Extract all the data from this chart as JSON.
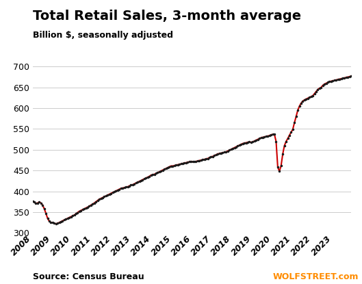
{
  "title": "Total Retail Sales, 3-month average",
  "subtitle": "Billion $, seasonally adjusted",
  "source_left": "Source: Census Bureau",
  "source_right": "WOLFSTREET.com",
  "ylim": [
    300,
    710
  ],
  "yticks": [
    300,
    350,
    400,
    450,
    500,
    550,
    600,
    650,
    700
  ],
  "background_color": "#ffffff",
  "line_color_main": "#1a1a1a",
  "line_color_highlight": "#cc0000",
  "grid_color": "#cccccc",
  "title_fontsize": 14,
  "subtitle_fontsize": 9,
  "source_fontsize": 9,
  "tick_fontsize": 9,
  "values": [
    376,
    374,
    371,
    372,
    374,
    372,
    367,
    358,
    347,
    335,
    328,
    325,
    325,
    323,
    322,
    323,
    325,
    327,
    329,
    331,
    333,
    335,
    337,
    339,
    341,
    343,
    346,
    349,
    352,
    354,
    356,
    358,
    360,
    362,
    364,
    367,
    369,
    372,
    375,
    378,
    381,
    383,
    385,
    387,
    389,
    391,
    393,
    395,
    397,
    399,
    401,
    403,
    405,
    407,
    408,
    409,
    410,
    411,
    413,
    415,
    416,
    418,
    420,
    422,
    424,
    426,
    428,
    430,
    432,
    434,
    436,
    439,
    440,
    441,
    443,
    445,
    447,
    449,
    451,
    453,
    455,
    457,
    459,
    461,
    461,
    462,
    463,
    464,
    465,
    466,
    467,
    468,
    469,
    470,
    471,
    472,
    471,
    471,
    472,
    473,
    474,
    475,
    476,
    477,
    478,
    479,
    481,
    483,
    484,
    486,
    488,
    490,
    491,
    492,
    493,
    494,
    495,
    497,
    499,
    501,
    503,
    505,
    507,
    509,
    511,
    513,
    515,
    516,
    517,
    518,
    519,
    518,
    519,
    521,
    523,
    525,
    527,
    529,
    530,
    531,
    532,
    533,
    534,
    536,
    537,
    537,
    520,
    458,
    448,
    462,
    490,
    510,
    520,
    527,
    535,
    542,
    549,
    565,
    580,
    595,
    605,
    612,
    617,
    620,
    622,
    624,
    626,
    628,
    630,
    635,
    640,
    645,
    648,
    650,
    655,
    658,
    660,
    662,
    664,
    665,
    666,
    667,
    668,
    669,
    670,
    671,
    672,
    673,
    674,
    675,
    676,
    677
  ],
  "x_tick_years": [
    "2008",
    "2009",
    "2010",
    "2011",
    "2012",
    "2013",
    "2014",
    "2015",
    "2016",
    "2017",
    "2018",
    "2019",
    "2020",
    "2021",
    "2022",
    "2023"
  ]
}
